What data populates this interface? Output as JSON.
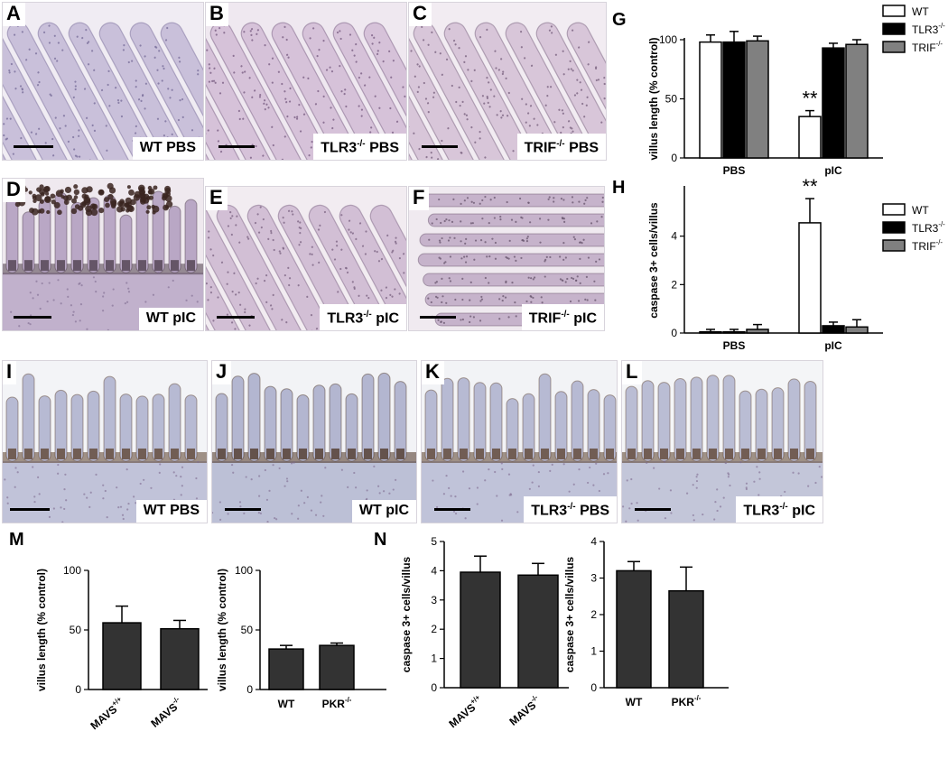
{
  "panels": [
    {
      "id": "A",
      "label": "WT PBS",
      "bg": "#f0ecf3",
      "tissue": "#c9c0da",
      "nuc": "#7b6f9b",
      "style": "villi-diag"
    },
    {
      "id": "B",
      "label": "TLR3-/- PBS",
      "bg": "#efe8f0",
      "tissue": "#d6c2d9",
      "nuc": "#7a5f83",
      "style": "villi-diag"
    },
    {
      "id": "C",
      "label": "TRIF-/- PBS",
      "bg": "#f2ecf2",
      "tissue": "#d8c6d9",
      "nuc": "#7a6380",
      "style": "villi-diag"
    },
    {
      "id": "D",
      "label": "WT pIC",
      "bg": "#efe9ef",
      "tissue": "#b9a7c5",
      "nuc": "#4a3a47",
      "style": "villi-up"
    },
    {
      "id": "E",
      "label": "TLR3-/- pIC",
      "bg": "#f2ecf1",
      "tissue": "#d2bfd5",
      "nuc": "#7e6685",
      "style": "villi-diag"
    },
    {
      "id": "F",
      "label": "TRIF-/- pIC",
      "bg": "#f0eaf0",
      "tissue": "#c6b3cb",
      "nuc": "#6d5a72",
      "style": "villi-horiz"
    },
    {
      "id": "I",
      "label": "WT PBS",
      "bg": "#f3f4f7",
      "tissue": "#b7bad3",
      "nuc": "#5a3e2a",
      "style": "villi-up"
    },
    {
      "id": "J",
      "label": "WT pIC",
      "bg": "#f2f3f6",
      "tissue": "#b3b6d0",
      "nuc": "#4a3020",
      "style": "villi-up"
    },
    {
      "id": "K",
      "label": "TLR3-/- PBS",
      "bg": "#f2f3f6",
      "tissue": "#b7bad3",
      "nuc": "#5a3e2a",
      "style": "villi-up"
    },
    {
      "id": "L",
      "label": "TLR3-/- pIC",
      "bg": "#f4f5f7",
      "tissue": "#babdd4",
      "nuc": "#5a3e2a",
      "style": "villi-up"
    }
  ],
  "legend": {
    "items": [
      {
        "name": "WT",
        "color": "#ffffff"
      },
      {
        "name": "TLR3",
        "sup": "-/-",
        "color": "#000000"
      },
      {
        "name": "TRIF",
        "sup": "-/-",
        "color": "#808080"
      }
    ]
  },
  "charts": {
    "G": {
      "letter": "G",
      "ylabel": "villus length (% control)",
      "ylim": [
        0,
        100
      ],
      "yticks": [
        "0",
        "50",
        "100"
      ],
      "groups": [
        "PBS",
        "pIC"
      ],
      "stars": "**"
    },
    "H": {
      "letter": "H",
      "ylabel": "caspase 3+ cells/villus",
      "ylim": [
        0,
        6
      ],
      "yticks": [
        "0",
        "2",
        "4"
      ],
      "groups": [
        "PBS",
        "pIC"
      ],
      "stars": "**"
    },
    "M1": {
      "letter": "M",
      "ylabel": "villus length (% control)",
      "yticks": [
        "0",
        "50",
        "100"
      ],
      "ylim": [
        0,
        100
      ],
      "cats": [
        {
          "t": "MAVS",
          "s": "+/+"
        },
        {
          "t": "MAVS",
          "s": "-/-"
        }
      ]
    },
    "M2": {
      "ylabel": "villus length (% control)",
      "yticks": [
        "0",
        "50",
        "100"
      ],
      "ylim": [
        0,
        100
      ],
      "cats": [
        {
          "t": "WT",
          "s": ""
        },
        {
          "t": "PKR",
          "s": "-/-"
        }
      ]
    },
    "N1": {
      "letter": "N",
      "ylabel": "caspase 3+ cells/villus",
      "yticks": [
        "0",
        "1",
        "2",
        "3",
        "4",
        "5"
      ],
      "ylim": [
        0,
        5
      ],
      "cats": [
        {
          "t": "MAVS",
          "s": "+/+"
        },
        {
          "t": "MAVS",
          "s": "-/-"
        }
      ]
    },
    "N2": {
      "ylabel": "caspase 3+ cells/villus",
      "yticks": [
        "0",
        "1",
        "2",
        "3",
        "4"
      ],
      "ylim": [
        0,
        4
      ],
      "cats": [
        {
          "t": "WT",
          "s": ""
        },
        {
          "t": "PKR",
          "s": "-/-"
        }
      ]
    }
  },
  "chart_data": [
    {
      "type": "bar",
      "id": "G",
      "ylabel": "villus length (% control)",
      "categories": [
        "PBS",
        "pIC"
      ],
      "ylim": [
        0,
        100
      ],
      "series": [
        {
          "name": "WT",
          "values": [
            98,
            35
          ],
          "err": [
            6,
            5
          ],
          "color": "#ffffff"
        },
        {
          "name": "TLR3-/-",
          "values": [
            98,
            93
          ],
          "err": [
            9,
            4
          ],
          "color": "#000000"
        },
        {
          "name": "TRIF-/-",
          "values": [
            99,
            96
          ],
          "err": [
            4,
            4
          ],
          "color": "#808080"
        }
      ]
    },
    {
      "type": "bar",
      "id": "H",
      "ylabel": "caspase 3+ cells/villus",
      "categories": [
        "PBS",
        "pIC"
      ],
      "ylim": [
        0,
        6
      ],
      "series": [
        {
          "name": "WT",
          "values": [
            0.05,
            4.55
          ],
          "err": [
            0.1,
            1.0
          ],
          "color": "#ffffff"
        },
        {
          "name": "TLR3-/-",
          "values": [
            0.05,
            0.3
          ],
          "err": [
            0.1,
            0.15
          ],
          "color": "#000000"
        },
        {
          "name": "TRIF-/-",
          "values": [
            0.15,
            0.25
          ],
          "err": [
            0.2,
            0.3
          ],
          "color": "#808080"
        }
      ]
    },
    {
      "type": "bar",
      "id": "M1",
      "ylabel": "villus length (% control)",
      "categories": [
        "MAVS+/+",
        "MAVS-/-"
      ],
      "ylim": [
        0,
        100
      ],
      "values": [
        56,
        51
      ],
      "err": [
        14,
        7
      ]
    },
    {
      "type": "bar",
      "id": "M2",
      "ylabel": "villus length (% control)",
      "categories": [
        "WT",
        "PKR-/-"
      ],
      "ylim": [
        0,
        100
      ],
      "values": [
        34,
        37
      ],
      "err": [
        3,
        2
      ]
    },
    {
      "type": "bar",
      "id": "N1",
      "ylabel": "caspase 3+ cells/villus",
      "categories": [
        "MAVS+/+",
        "MAVS-/-"
      ],
      "ylim": [
        0,
        5
      ],
      "values": [
        3.95,
        3.85
      ],
      "err": [
        0.55,
        0.4
      ]
    },
    {
      "type": "bar",
      "id": "N2",
      "ylabel": "caspase 3+ cells/villus",
      "categories": [
        "WT",
        "PKR-/-"
      ],
      "ylim": [
        0,
        4
      ],
      "values": [
        3.2,
        2.65
      ],
      "err": [
        0.25,
        0.65
      ]
    }
  ]
}
